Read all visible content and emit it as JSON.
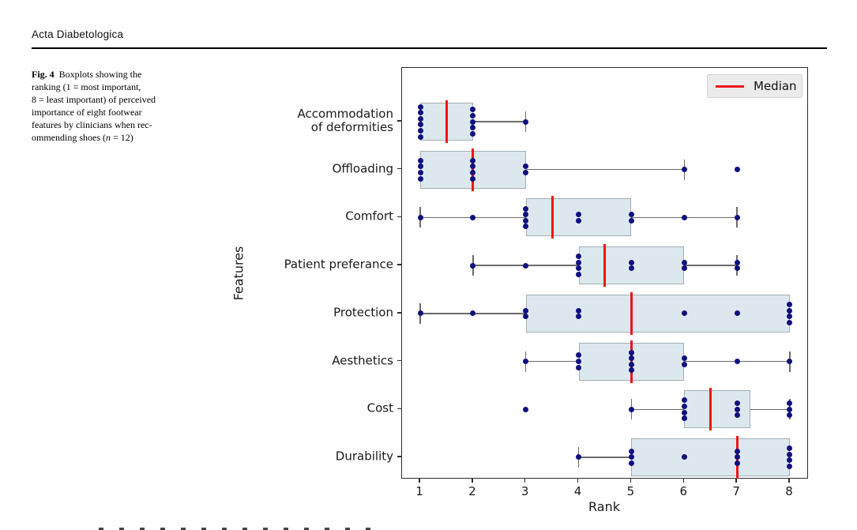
{
  "page": {
    "journal_header": "Acta Diabetologica"
  },
  "caption": {
    "label": "Fig. 4",
    "line1": "Boxplots showing the",
    "line2": "ranking (1 = most important,",
    "line3": "8 = least important) of perceived",
    "line4": "importance of eight footwear",
    "line5": "features by clinicians when rec-",
    "line6_pre": "ommending shoes (",
    "line6_var": "n",
    "line6_post": " = 12)"
  },
  "chart_data": {
    "type": "boxplot",
    "orientation": "horizontal",
    "title": "",
    "xlabel": "Rank",
    "ylabel": "Features",
    "xlim": [
      0.65,
      8.36
    ],
    "x_ticks": [
      1,
      2,
      3,
      4,
      5,
      6,
      7,
      8
    ],
    "grid": false,
    "sample_size_n": 12,
    "legend": {
      "label": "Median",
      "position": "upper right"
    },
    "colors": {
      "box_fill": "#dde8ee",
      "box_edge": "#a3aeb4",
      "median": "#f01414",
      "point": "#10107e",
      "whisker": "#6b6b6b"
    },
    "rows": [
      {
        "label_lines": [
          "Accommodation",
          "of deformities"
        ],
        "q1": 1,
        "median": 1.5,
        "q3": 2,
        "whisker_low": 1,
        "whisker_high": 3,
        "outliers": [],
        "points": [
          [
            1,
            6
          ],
          [
            2,
            5
          ],
          [
            3,
            1
          ]
        ]
      },
      {
        "label_lines": [
          "Offloading"
        ],
        "q1": 1,
        "median": 2,
        "q3": 3,
        "whisker_low": 1,
        "whisker_high": 6,
        "outliers": [
          7
        ],
        "points": [
          [
            1,
            4
          ],
          [
            2,
            4
          ],
          [
            3,
            2
          ],
          [
            6,
            1
          ],
          [
            7,
            1
          ]
        ]
      },
      {
        "label_lines": [
          "Comfort"
        ],
        "q1": 3,
        "median": 3.5,
        "q3": 5,
        "whisker_low": 1,
        "whisker_high": 7,
        "outliers": [],
        "points": [
          [
            1,
            1
          ],
          [
            2,
            1
          ],
          [
            3,
            4
          ],
          [
            4,
            2
          ],
          [
            5,
            2
          ],
          [
            6,
            1
          ],
          [
            7,
            1
          ]
        ]
      },
      {
        "label_lines": [
          "Patient preferance"
        ],
        "q1": 4,
        "median": 4.5,
        "q3": 6,
        "whisker_low": 2,
        "whisker_high": 7,
        "outliers": [],
        "points": [
          [
            2,
            1
          ],
          [
            3,
            1
          ],
          [
            4,
            4
          ],
          [
            5,
            2
          ],
          [
            6,
            2
          ],
          [
            7,
            2
          ]
        ]
      },
      {
        "label_lines": [
          "Protection"
        ],
        "q1": 3,
        "median": 5,
        "q3": 8,
        "whisker_low": 1,
        "whisker_high": 8,
        "outliers": [],
        "points": [
          [
            1,
            1
          ],
          [
            2,
            1
          ],
          [
            3,
            2
          ],
          [
            4,
            2
          ],
          [
            6,
            1
          ],
          [
            7,
            1
          ],
          [
            8,
            4
          ]
        ]
      },
      {
        "label_lines": [
          "Aesthetics"
        ],
        "q1": 4,
        "median": 5,
        "q3": 6,
        "whisker_low": 3,
        "whisker_high": 8,
        "outliers": [],
        "points": [
          [
            3,
            1
          ],
          [
            4,
            3
          ],
          [
            5,
            4
          ],
          [
            6,
            2
          ],
          [
            7,
            1
          ],
          [
            8,
            1
          ]
        ]
      },
      {
        "label_lines": [
          "Cost"
        ],
        "q1": 6,
        "median": 6.5,
        "q3": 7.25,
        "whisker_low": 5,
        "whisker_high": 8,
        "outliers": [
          3
        ],
        "points": [
          [
            3,
            1
          ],
          [
            5,
            1
          ],
          [
            6,
            4
          ],
          [
            7,
            3
          ],
          [
            8,
            3
          ]
        ]
      },
      {
        "label_lines": [
          "Durability"
        ],
        "q1": 5,
        "median": 7,
        "q3": 8,
        "whisker_low": 4,
        "whisker_high": 8,
        "outliers": [],
        "points": [
          [
            4,
            1
          ],
          [
            5,
            3
          ],
          [
            6,
            1
          ],
          [
            7,
            3
          ],
          [
            8,
            4
          ]
        ]
      }
    ]
  }
}
